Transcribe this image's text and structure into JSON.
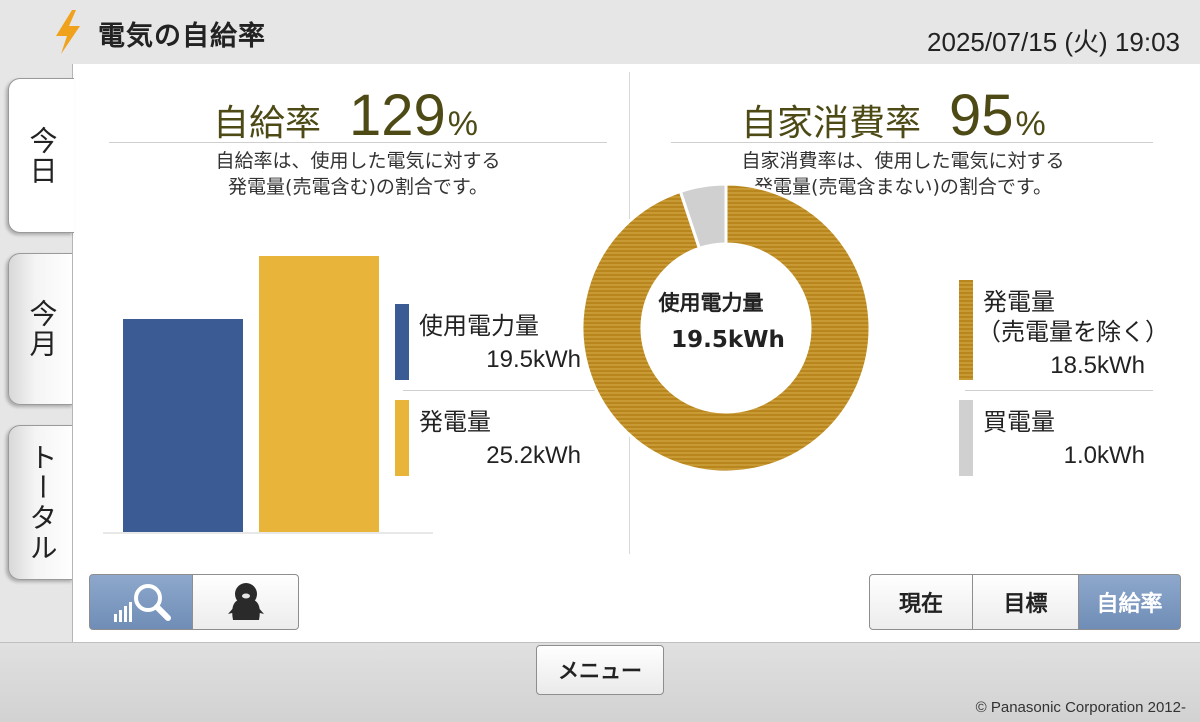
{
  "header": {
    "title": "電気の自給率",
    "datetime": "2025/07/15 (火) 19:03"
  },
  "tabs": [
    {
      "label": "今日",
      "active": true
    },
    {
      "label": "今月",
      "active": false
    },
    {
      "label": "トータル",
      "active": false
    }
  ],
  "self_sufficiency": {
    "label": "自給率",
    "value": "129",
    "unit": "%",
    "desc_line1": "自給率は、使用した電気に対する",
    "desc_line2": "発電量(売電含む)の割合です。",
    "legend": [
      {
        "name": "使用電力量",
        "value": "19.5kWh",
        "color": "#3a5b93"
      },
      {
        "name": "発電量",
        "value": "25.2kWh",
        "color": "#e8b43a"
      }
    ]
  },
  "self_consumption": {
    "label": "自家消費率",
    "value": "95",
    "unit": "%",
    "desc_line1": "自家消費率は、使用した電気に対する",
    "desc_line2": "発電量(売電含まない)の割合です。",
    "center_label": "使用電力量",
    "center_value": "19.5kWh",
    "legend": [
      {
        "name": "発電量",
        "name2": "（売電量を除く）",
        "value": "18.5kWh",
        "color": "#b8861c"
      },
      {
        "name": "買電量",
        "value": "1.0kWh",
        "color": "#d0d0d0"
      }
    ]
  },
  "chart_data": [
    {
      "type": "bar",
      "categories": [
        "使用電力量",
        "発電量"
      ],
      "values": [
        19.5,
        25.2
      ],
      "unit": "kWh",
      "colors": [
        "#3a5b93",
        "#e8b43a"
      ]
    },
    {
      "type": "pie",
      "categories": [
        "発電量（売電量を除く）",
        "買電量"
      ],
      "values": [
        18.5,
        1.0
      ],
      "unit": "kWh",
      "colors": [
        "#b8861c",
        "#d0d0d0"
      ]
    }
  ],
  "view_buttons": [
    {
      "icon": "graph-magnifier-icon",
      "selected": true
    },
    {
      "icon": "penguin-icon",
      "selected": false
    }
  ],
  "mode_buttons": [
    {
      "label": "現在",
      "selected": false
    },
    {
      "label": "目標",
      "selected": false
    },
    {
      "label": "自給率",
      "selected": true
    }
  ],
  "footer": {
    "menu_label": "メニュー",
    "copyright": "© Panasonic Corporation 2012-"
  }
}
